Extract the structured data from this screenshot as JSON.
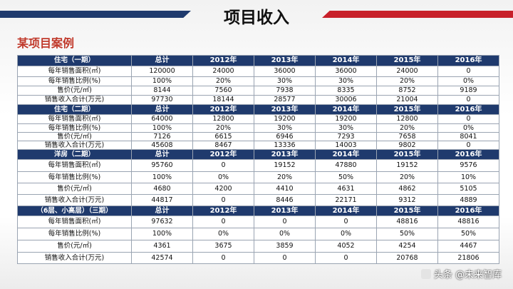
{
  "title": "项目收入",
  "subtitle": "某项目案例",
  "watermark": "头条 @未来智库",
  "colors": {
    "header_bg": "#1f3a6d",
    "accent_red": "#c8202a",
    "subtitle": "#c0392b"
  },
  "years": [
    "总计",
    "2012年",
    "2013年",
    "2014年",
    "2015年",
    "2016年"
  ],
  "sections": [
    {
      "name": "住宅（一期）",
      "rows": [
        {
          "label": "每年销售面积(㎡)",
          "values": [
            "120000",
            "24000",
            "36000",
            "36000",
            "24000",
            "0"
          ]
        },
        {
          "label": "每年销售比例(%)",
          "values": [
            "100%",
            "20%",
            "30%",
            "30%",
            "20%",
            "0%"
          ]
        },
        {
          "label": "售价(元/㎡)",
          "values": [
            "8144",
            "7560",
            "7938",
            "8335",
            "8752",
            "9189"
          ]
        },
        {
          "label": "销售收入合计(万元)",
          "values": [
            "97730",
            "18144",
            "28577",
            "30006",
            "21004",
            "0"
          ]
        }
      ]
    },
    {
      "name": "住宅（二期）",
      "rows": [
        {
          "label": "每年销售面积(㎡)",
          "values": [
            "64000",
            "12800",
            "19200",
            "19200",
            "12800",
            "0"
          ]
        },
        {
          "label": "每年销售比例(%)",
          "values": [
            "100%",
            "20%",
            "30%",
            "30%",
            "20%",
            "0%"
          ]
        },
        {
          "label": "售价(元/㎡)",
          "values": [
            "7126",
            "6615",
            "6946",
            "7293",
            "7658",
            "8041"
          ]
        },
        {
          "label": "销售收入合计(万元)",
          "values": [
            "45608",
            "8467",
            "13336",
            "14003",
            "9802",
            "0"
          ]
        }
      ]
    },
    {
      "name": "洋房（二期）",
      "rows": [
        {
          "label": "每年销售面积(㎡)",
          "values": [
            "95760",
            "0",
            "19152",
            "47880",
            "19152",
            "9576"
          ]
        },
        {
          "label": "每年销售比例(%)",
          "values": [
            "100%",
            "0%",
            "20%",
            "50%",
            "20%",
            "10%"
          ]
        },
        {
          "label": "售价(元/㎡)",
          "values": [
            "4680",
            "4200",
            "4410",
            "4631",
            "4862",
            "5105"
          ]
        },
        {
          "label": "销售收入合计(万元)",
          "values": [
            "44817",
            "0",
            "8446",
            "22171",
            "9312",
            "4889"
          ]
        }
      ]
    },
    {
      "name": "（6层、小高层）（三期）",
      "rows": [
        {
          "label": "每年销售面积(㎡)",
          "values": [
            "97632",
            "0",
            "0",
            "0",
            "48816",
            "48816"
          ]
        },
        {
          "label": "每年销售比例(%)",
          "values": [
            "100%",
            "0%",
            "0%",
            "0%",
            "50%",
            "50%"
          ]
        },
        {
          "label": "售价(元/㎡)",
          "values": [
            "4361",
            "3675",
            "3859",
            "4052",
            "4254",
            "4467"
          ]
        },
        {
          "label": "销售收入合计(万元)",
          "values": [
            "42574",
            "0",
            "0",
            "0",
            "20768",
            "21806"
          ]
        }
      ]
    }
  ]
}
